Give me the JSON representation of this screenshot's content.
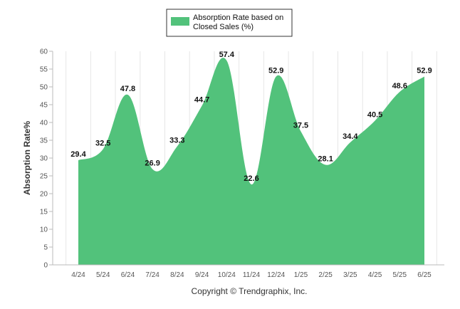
{
  "chart_data": {
    "type": "area",
    "series": [
      {
        "name": "Absorption Rate based on Closed Sales (%)",
        "color": "#52c27b",
        "values": [
          29.4,
          32.5,
          47.8,
          26.9,
          33.3,
          44.7,
          57.4,
          22.6,
          52.9,
          37.5,
          28.1,
          34.4,
          40.5,
          48.6,
          52.9
        ]
      }
    ],
    "categories": [
      "4/24",
      "5/24",
      "6/24",
      "7/24",
      "8/24",
      "9/24",
      "10/24",
      "11/24",
      "12/24",
      "1/25",
      "2/25",
      "3/25",
      "4/25",
      "5/25",
      "6/25"
    ],
    "ylabel": "Absorption Rate%",
    "xlabel": "",
    "ylim": [
      0,
      60
    ],
    "yticks": [
      0,
      5,
      10,
      15,
      20,
      25,
      30,
      35,
      40,
      45,
      50,
      55,
      60
    ],
    "legend_position": "top-center",
    "grid": "vertical",
    "data_labels": true
  },
  "legend": {
    "label": "Absorption Rate based on Closed Sales (%)"
  },
  "footer": {
    "copyright": "Copyright © Trendgraphix, Inc."
  }
}
